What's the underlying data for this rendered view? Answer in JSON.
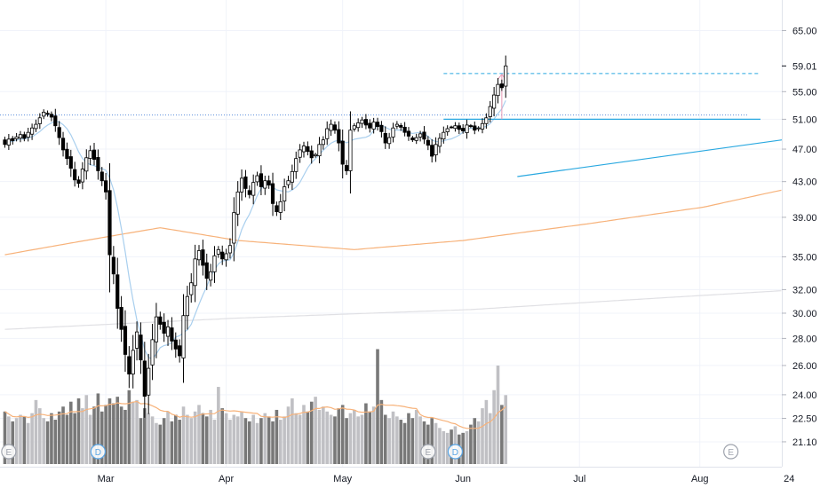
{
  "chart_data": {
    "type": "candlestick",
    "title": "",
    "y_axis": {
      "scale": "log",
      "ylim": [
        20.0,
        67.0
      ],
      "ticks": [
        "65.00",
        "55.00",
        "51.00",
        "47.00",
        "43.00",
        "39.00",
        "35.00",
        "32.00",
        "30.00",
        "28.00",
        "26.00",
        "24.00",
        "22.50",
        "21.10"
      ],
      "last_price_label": "59.01",
      "grid": true
    },
    "x_axis": {
      "ticks": [
        {
          "label": "Mar",
          "day": 26
        },
        {
          "label": "Apr",
          "day": 57
        },
        {
          "label": "May",
          "day": 87
        },
        {
          "label": "Jun",
          "day": 118
        },
        {
          "label": "Jul",
          "day": 148
        },
        {
          "label": "Aug",
          "day": 179
        },
        {
          "label": "24",
          "day": 202
        }
      ]
    },
    "candles_start": [
      48.2,
      44.3
    ],
    "candle_closes": [
      47.6,
      48.3,
      48.1,
      48.6,
      48.9,
      48.4,
      49.2,
      49.8,
      50.3,
      51.2,
      52.0,
      51.7,
      51.3,
      50.1,
      48.5,
      46.9,
      45.8,
      44.6,
      43.2,
      42.8,
      44.5,
      45.9,
      46.8,
      45.7,
      44.3,
      43.1,
      41.8,
      35.2,
      33.4,
      30.4,
      28.7,
      26.8,
      25.4,
      27.1,
      28.5,
      26.4,
      23.9,
      25.8,
      27.9,
      29.7,
      29.1,
      28.4,
      28.9,
      27.8,
      27.2,
      26.7,
      29.8,
      31.4,
      32.6,
      34.8,
      35.6,
      34.2,
      33.0,
      33.6,
      35.1,
      35.7,
      34.8,
      35.3,
      36.1,
      39.5,
      41.8,
      43.4,
      42.2,
      41.5,
      42.9,
      43.7,
      42.4,
      43.1,
      42.6,
      40.5,
      39.6,
      40.7,
      42.4,
      43.1,
      44.2,
      45.8,
      46.9,
      47.4,
      46.7,
      45.9,
      46.3,
      47.6,
      48.2,
      49.7,
      50.3,
      49.5,
      47.8,
      45.1,
      44.3,
      49.5,
      50.1,
      50.5,
      50.9,
      50.2,
      49.8,
      50.6,
      50.0,
      49.3,
      47.8,
      48.5,
      49.8,
      50.3,
      49.9,
      49.2,
      48.7,
      48.2,
      48.5,
      49.0,
      48.3,
      47.5,
      46.1,
      47.6,
      48.4,
      49.2,
      49.7,
      49.9,
      50.1,
      49.6,
      49.4,
      50.2,
      50.0,
      49.5,
      49.8,
      50.4,
      51.2,
      52.8,
      54.5,
      56.1,
      55.6,
      59.01
    ],
    "volumes": [
      3.2,
      2.9,
      2.6,
      2.8,
      3.0,
      2.9,
      2.5,
      3.1,
      3.9,
      3.4,
      2.8,
      2.6,
      3.1,
      2.7,
      3.2,
      3.5,
      3.0,
      3.8,
      3.1,
      4.0,
      3.4,
      4.2,
      3.0,
      3.5,
      4.3,
      3.2,
      3.6,
      4.0,
      3.7,
      4.1,
      3.5,
      3.3,
      4.5,
      3.8,
      3.9,
      2.8,
      3.4,
      3.1,
      2.9,
      2.5,
      2.4,
      2.8,
      3.2,
      2.6,
      3.0,
      2.7,
      3.5,
      3.0,
      2.8,
      3.2,
      3.6,
      3.1,
      2.9,
      3.3,
      2.7,
      4.7,
      3.4,
      3.1,
      2.7,
      3.0,
      2.9,
      3.2,
      2.8,
      2.6,
      3.0,
      2.5,
      2.8,
      3.1,
      2.9,
      2.6,
      3.3,
      2.7,
      2.9,
      3.5,
      4.0,
      3.1,
      3.0,
      3.6,
      3.2,
      3.8,
      4.1,
      3.3,
      3.5,
      3.2,
      3.0,
      2.9,
      3.4,
      3.6,
      2.8,
      3.1,
      3.3,
      2.9,
      3.0,
      3.7,
      3.2,
      3.5,
      7.0,
      3.9,
      3.0,
      2.8,
      3.2,
      2.9,
      2.7,
      2.5,
      3.1,
      2.8,
      3.3,
      2.9,
      2.6,
      2.4,
      2.8,
      2.5,
      2.2,
      2.0,
      1.9,
      2.1,
      2.3,
      1.8,
      1.9,
      2.0,
      2.4,
      2.8,
      2.6,
      3.4,
      3.9,
      3.1,
      4.5,
      6.0,
      3.6,
      4.2
    ],
    "volume_colors": {
      "up": "#c0c0c4",
      "down": "#787878"
    },
    "candle_colors": {
      "body_up": "#ffffff",
      "body_down": "#000000",
      "outline": "#000000"
    },
    "ma_lines": {
      "ma_blue_color": "#a9cfee",
      "ma_orange_color": "#f7b27a",
      "ma_grey_color": "#e0e0e4",
      "ma_orange_values": [
        [
          0,
          35.2
        ],
        [
          40,
          37.9
        ],
        [
          60,
          36.6
        ],
        [
          90,
          35.7
        ],
        [
          118,
          36.6
        ],
        [
          150,
          38.3
        ],
        [
          180,
          40.1
        ],
        [
          200,
          42.0
        ]
      ],
      "ma_grey_values": [
        [
          0,
          28.7
        ],
        [
          60,
          29.6
        ],
        [
          120,
          30.3
        ],
        [
          180,
          31.5
        ],
        [
          200,
          31.9
        ]
      ]
    },
    "annotations": {
      "resistance_level": 51.0,
      "dotted_resistance": 51.6,
      "dashed_target": 57.8,
      "trendline_from": [
        132,
        43.6
      ],
      "trendline_to": [
        203,
        48.4
      ],
      "resistance_color": "#29a8e0",
      "arrow_color": "#e79ab5",
      "dotted_color": "#5c8edb"
    },
    "event_markers": [
      {
        "label": "E",
        "day": 1,
        "style": "grey"
      },
      {
        "label": "D",
        "day": 24,
        "style": "blue"
      },
      {
        "label": "E",
        "day": 109,
        "style": "grey"
      },
      {
        "label": "D",
        "day": 116,
        "style": "blue"
      },
      {
        "label": "E",
        "day": 187,
        "style": "grey"
      }
    ]
  }
}
